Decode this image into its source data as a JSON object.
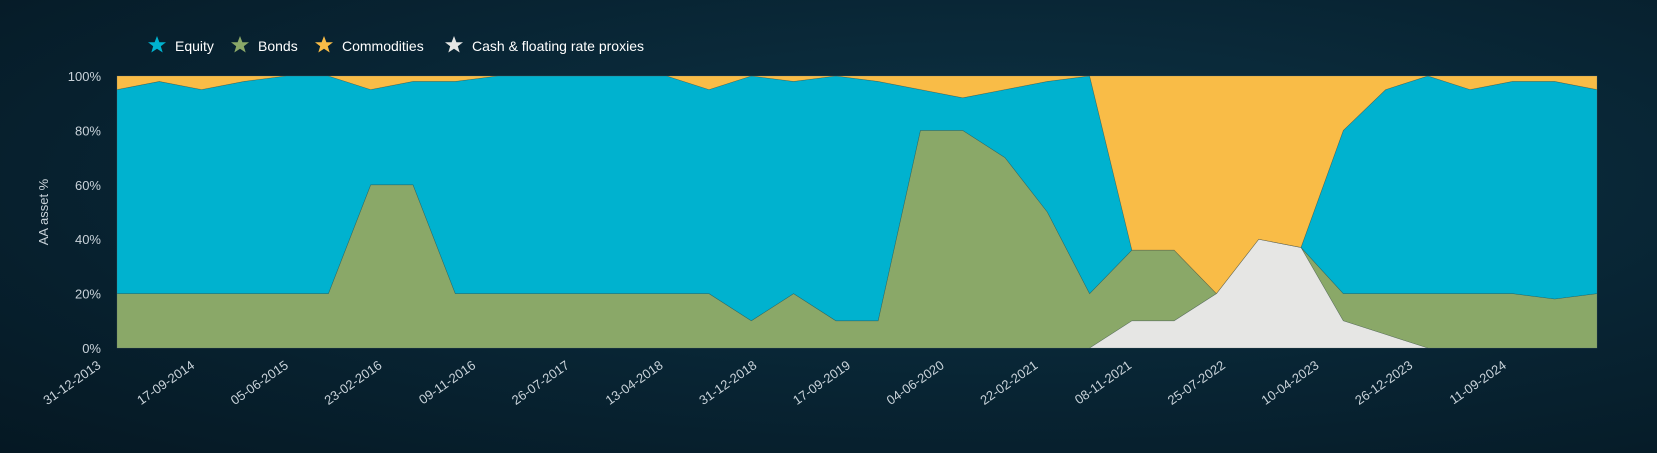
{
  "chart_data": {
    "type": "area",
    "stacked": true,
    "title": "",
    "xlabel": "",
    "ylabel": "AA asset %",
    "ylim": [
      0,
      100
    ],
    "y_ticks": [
      "0%",
      "20%",
      "40%",
      "60%",
      "80%",
      "100%"
    ],
    "x_tick_labels": [
      "31-12-2013",
      "17-09-2014",
      "05-06-2015",
      "23-02-2016",
      "09-11-2016",
      "26-07-2017",
      "13-04-2018",
      "31-12-2018",
      "17-09-2019",
      "04-06-2020",
      "22-02-2021",
      "08-11-2021",
      "25-07-2022",
      "10-04-2023",
      "26-12-2023",
      "11-09-2024"
    ],
    "grid": false,
    "legend_position": "top-left",
    "legend": [
      {
        "name": "Equity",
        "color": "#00b2cf"
      },
      {
        "name": "Bonds",
        "color": "#8aa868"
      },
      {
        "name": "Commodities",
        "color": "#f9bc47"
      },
      {
        "name": "Cash & floating rate proxies",
        "color": "#e6e6e4"
      }
    ],
    "x": [
      "31-12-2013",
      "01-04-2014",
      "01-07-2014",
      "17-09-2014",
      "01-01-2015",
      "05-06-2015",
      "01-10-2015",
      "23-02-2016",
      "01-07-2016",
      "09-11-2016",
      "01-03-2017",
      "26-07-2017",
      "01-12-2017",
      "13-04-2018",
      "01-08-2018",
      "31-12-2018",
      "01-05-2019",
      "17-09-2019",
      "01-01-2020",
      "01-02-2020",
      "04-06-2020",
      "01-10-2020",
      "22-02-2021",
      "01-07-2021",
      "08-11-2021",
      "01-02-2022",
      "01-05-2022",
      "25-07-2022",
      "01-11-2022",
      "01-02-2023",
      "10-04-2023",
      "01-08-2023",
      "26-12-2023",
      "01-05-2024",
      "11-09-2024",
      "31-12-2024"
    ],
    "series": [
      {
        "name": "Cash & floating rate proxies",
        "values": [
          0,
          0,
          0,
          0,
          0,
          0,
          0,
          0,
          0,
          0,
          0,
          0,
          0,
          0,
          0,
          0,
          0,
          0,
          0,
          0,
          0,
          0,
          0,
          0,
          10,
          10,
          20,
          40,
          37,
          10,
          5,
          0,
          0,
          0,
          0,
          0
        ]
      },
      {
        "name": "Bonds",
        "values": [
          20,
          20,
          20,
          20,
          20,
          20,
          60,
          60,
          20,
          20,
          20,
          20,
          20,
          20,
          20,
          10,
          20,
          10,
          10,
          80,
          80,
          70,
          50,
          20,
          26,
          26,
          0,
          0,
          0,
          10,
          15,
          20,
          20,
          20,
          18,
          20
        ]
      },
      {
        "name": "Equity",
        "values": [
          75,
          78,
          75,
          78,
          80,
          80,
          35,
          38,
          78,
          80,
          80,
          80,
          80,
          80,
          75,
          90,
          78,
          90,
          88,
          15,
          12,
          25,
          48,
          80,
          0,
          0,
          0,
          0,
          0,
          60,
          75,
          80,
          75,
          78,
          80,
          75
        ]
      },
      {
        "name": "Commodities",
        "values": [
          5,
          2,
          5,
          2,
          0,
          0,
          5,
          2,
          2,
          0,
          0,
          0,
          0,
          0,
          5,
          0,
          2,
          0,
          2,
          5,
          8,
          5,
          2,
          0,
          64,
          64,
          80,
          60,
          63,
          20,
          5,
          0,
          5,
          2,
          2,
          5
        ]
      }
    ]
  }
}
